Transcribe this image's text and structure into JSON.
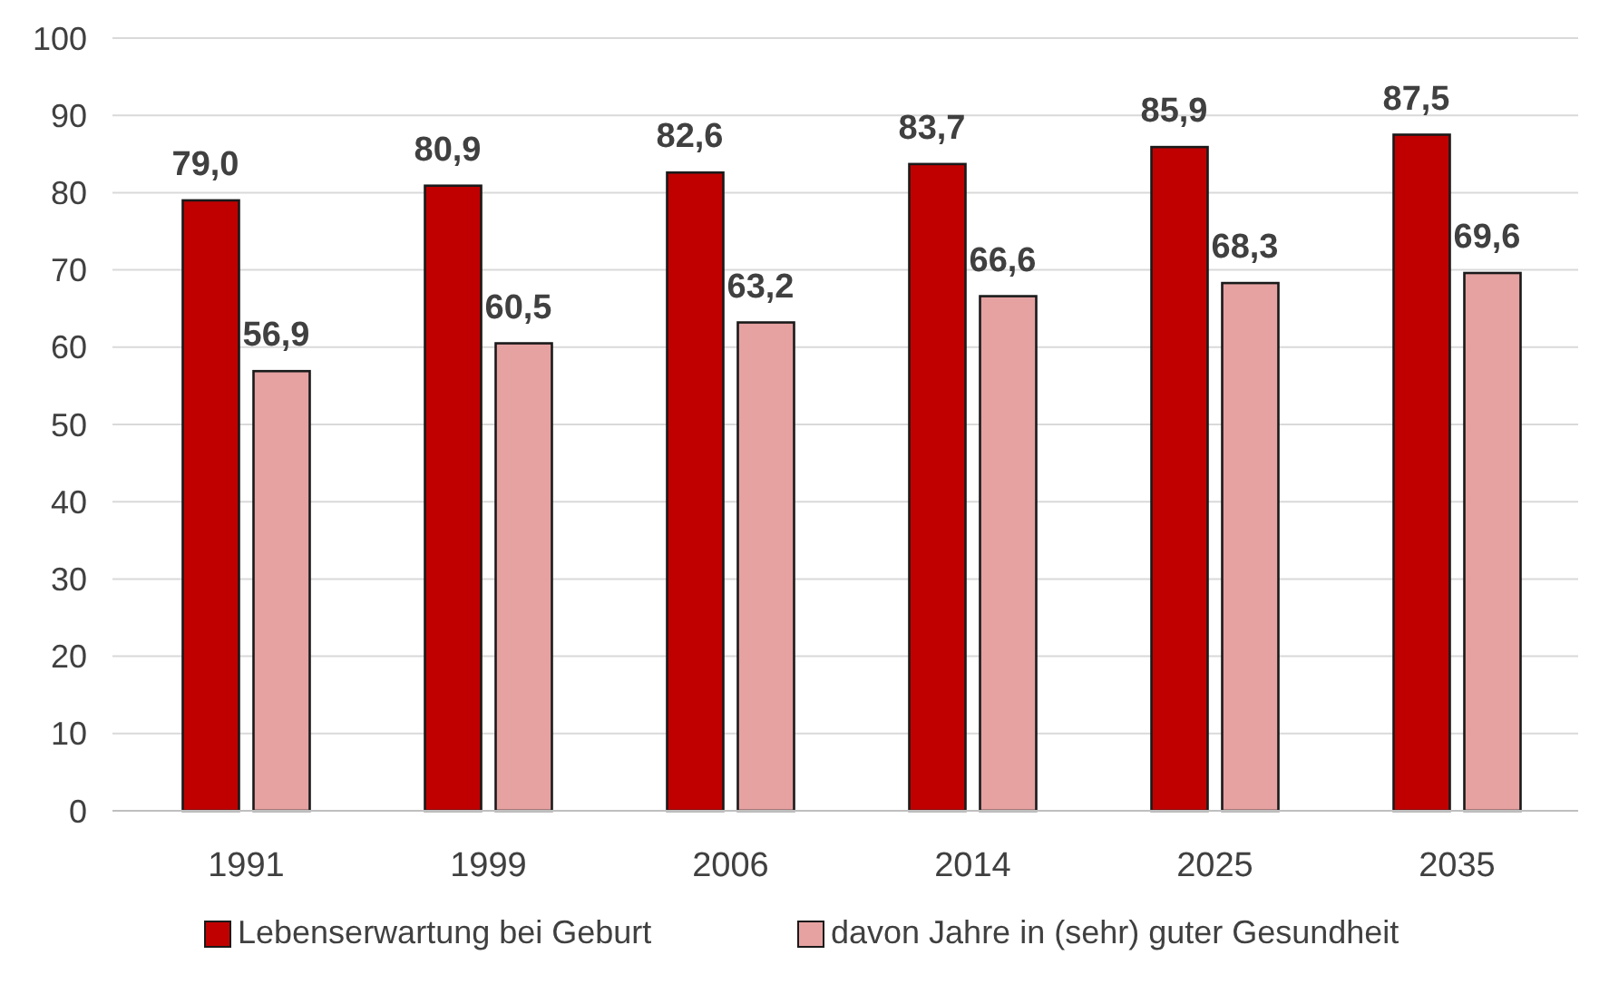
{
  "chart_data": {
    "type": "bar",
    "categories": [
      "1991",
      "1999",
      "2006",
      "2014",
      "2025",
      "2035"
    ],
    "series": [
      {
        "name": "Lebenserwartung bei Geburt",
        "color": "#c00000",
        "values": [
          79.0,
          80.9,
          82.6,
          83.7,
          85.9,
          87.5
        ],
        "value_labels": [
          "79,0",
          "80,9",
          "82,6",
          "83,7",
          "85,9",
          "87,5"
        ]
      },
      {
        "name": "davon Jahre in (sehr) guter Gesundheit",
        "color": "#e6a1a1",
        "values": [
          56.9,
          60.5,
          63.2,
          66.6,
          68.3,
          69.6
        ],
        "value_labels": [
          "56,9",
          "60,5",
          "63,2",
          "66,6",
          "68,3",
          "69,6"
        ]
      }
    ],
    "ylim": [
      0,
      100
    ],
    "yticks": [
      0,
      10,
      20,
      30,
      40,
      50,
      60,
      70,
      80,
      90,
      100
    ],
    "grid": "y",
    "legend": "bottom"
  }
}
